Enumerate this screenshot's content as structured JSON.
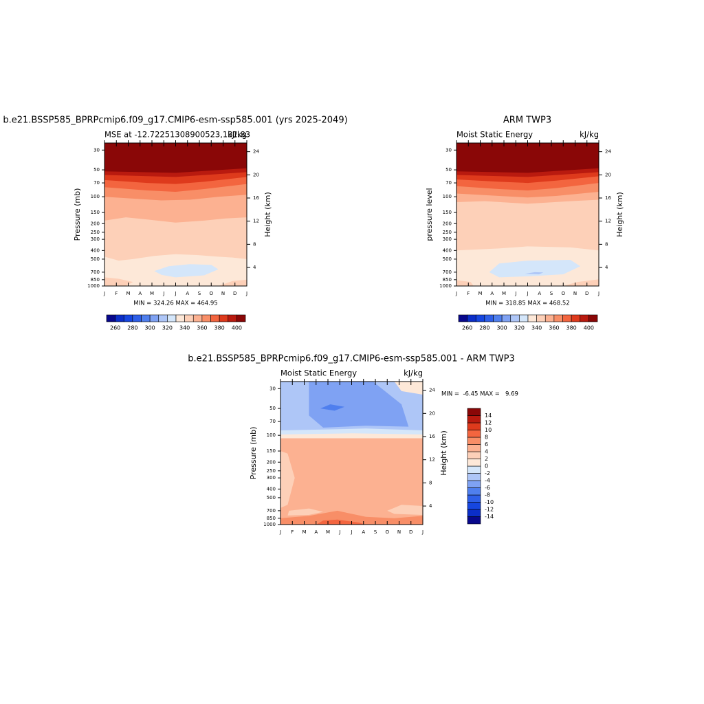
{
  "chart_data": [
    {
      "type": "contour",
      "title": "b.e21.BSSP585_BPRPcmip6.f09_g17.CMIP6-esm-ssp585.001 (yrs 2025-2049)",
      "subtitle": "MSE at -12.72251308900523,131.83",
      "units": "kJ/kg",
      "ylabel": "Pressure (mb)",
      "y2label": "Height (km)",
      "categories": [
        "J",
        "F",
        "M",
        "A",
        "M",
        "J",
        "J",
        "A",
        "S",
        "O",
        "N",
        "D",
        "J"
      ],
      "yscale": "log",
      "ylim": [
        1000,
        25
      ],
      "yticks": [
        30,
        50,
        70,
        100,
        150,
        200,
        250,
        300,
        400,
        500,
        700,
        850,
        1000
      ],
      "y2lim": [
        0.8,
        25.5
      ],
      "y2ticks": [
        4,
        8,
        12,
        16,
        20,
        24
      ],
      "stats": "MIN = 324.26 MAX = 464.95",
      "colorbar": {
        "orientation": "horizontal",
        "levels": [
          260,
          270,
          280,
          290,
          300,
          310,
          320,
          330,
          340,
          350,
          360,
          370,
          380,
          390,
          400
        ],
        "ticks": [
          260,
          280,
          300,
          320,
          340,
          360,
          380,
          400
        ],
        "colors": [
          "#08088c",
          "#0b2ec8",
          "#1646e0",
          "#2e5fe8",
          "#4f7fee",
          "#7fa2f3",
          "#aec6f7",
          "#d4e6fa",
          "#fde8d8",
          "#fdd0b8",
          "#fcb191",
          "#f88e67",
          "#f3653f",
          "#de3a1c",
          "#b91a0f",
          "#8a0707"
        ]
      }
    },
    {
      "type": "contour",
      "title": "ARM TWP3",
      "subtitle": "Moist Static Energy",
      "units": "kJ/kg",
      "ylabel": "pressure level",
      "y2label": "Height (km)",
      "categories": [
        "J",
        "F",
        "M",
        "A",
        "M",
        "J",
        "J",
        "A",
        "S",
        "O",
        "N",
        "D",
        "J"
      ],
      "yscale": "log",
      "ylim": [
        1000,
        25
      ],
      "yticks": [
        30,
        50,
        70,
        100,
        150,
        200,
        250,
        300,
        400,
        500,
        700,
        850,
        1000
      ],
      "y2lim": [
        0.8,
        25.5
      ],
      "y2ticks": [
        4,
        8,
        12,
        16,
        20,
        24
      ],
      "stats": "MIN = 318.85 MAX = 468.52",
      "colorbar": {
        "orientation": "horizontal",
        "levels": [
          260,
          270,
          280,
          290,
          300,
          310,
          320,
          330,
          340,
          350,
          360,
          370,
          380,
          390,
          400
        ],
        "ticks": [
          260,
          280,
          300,
          320,
          340,
          360,
          380,
          400
        ],
        "colors": [
          "#08088c",
          "#0b2ec8",
          "#1646e0",
          "#2e5fe8",
          "#4f7fee",
          "#7fa2f3",
          "#aec6f7",
          "#d4e6fa",
          "#fde8d8",
          "#fdd0b8",
          "#fcb191",
          "#f88e67",
          "#f3653f",
          "#de3a1c",
          "#b91a0f",
          "#8a0707"
        ]
      }
    },
    {
      "type": "contour",
      "title": "b.e21.BSSP585_BPRPcmip6.f09_g17.CMIP6-esm-ssp585.001 - ARM TWP3",
      "subtitle": "Moist Static Energy",
      "units": "kJ/kg",
      "ylabel": "Pressure (mb)",
      "y2label": "Height (km)",
      "categories": [
        "J",
        "F",
        "M",
        "A",
        "M",
        "J",
        "J",
        "A",
        "S",
        "O",
        "N",
        "D",
        "J"
      ],
      "yscale": "log",
      "ylim": [
        1000,
        25
      ],
      "yticks": [
        30,
        50,
        70,
        100,
        150,
        200,
        250,
        300,
        400,
        500,
        700,
        850,
        1000
      ],
      "y2lim": [
        0.8,
        25.5
      ],
      "y2ticks": [
        4,
        8,
        12,
        16,
        20,
        24
      ],
      "stats": "MIN =  -6.45 MAX =   9.69",
      "colorbar": {
        "orientation": "vertical",
        "levels": [
          -14,
          -12,
          -10,
          -8,
          -6,
          -4,
          -2,
          0,
          2,
          4,
          6,
          8,
          10,
          12,
          14
        ],
        "ticks": [
          -14,
          -12,
          -10,
          -8,
          -6,
          -4,
          -2,
          0,
          2,
          4,
          6,
          8,
          10,
          12,
          14
        ],
        "colors": [
          "#08088c",
          "#0b2ec8",
          "#1646e0",
          "#2e5fe8",
          "#4f7fee",
          "#7fa2f3",
          "#aec6f7",
          "#d4e6fa",
          "#fde8d8",
          "#fdd0b8",
          "#fcb191",
          "#f88e67",
          "#f3653f",
          "#de3a1c",
          "#b91a0f",
          "#8a0707"
        ]
      }
    }
  ]
}
